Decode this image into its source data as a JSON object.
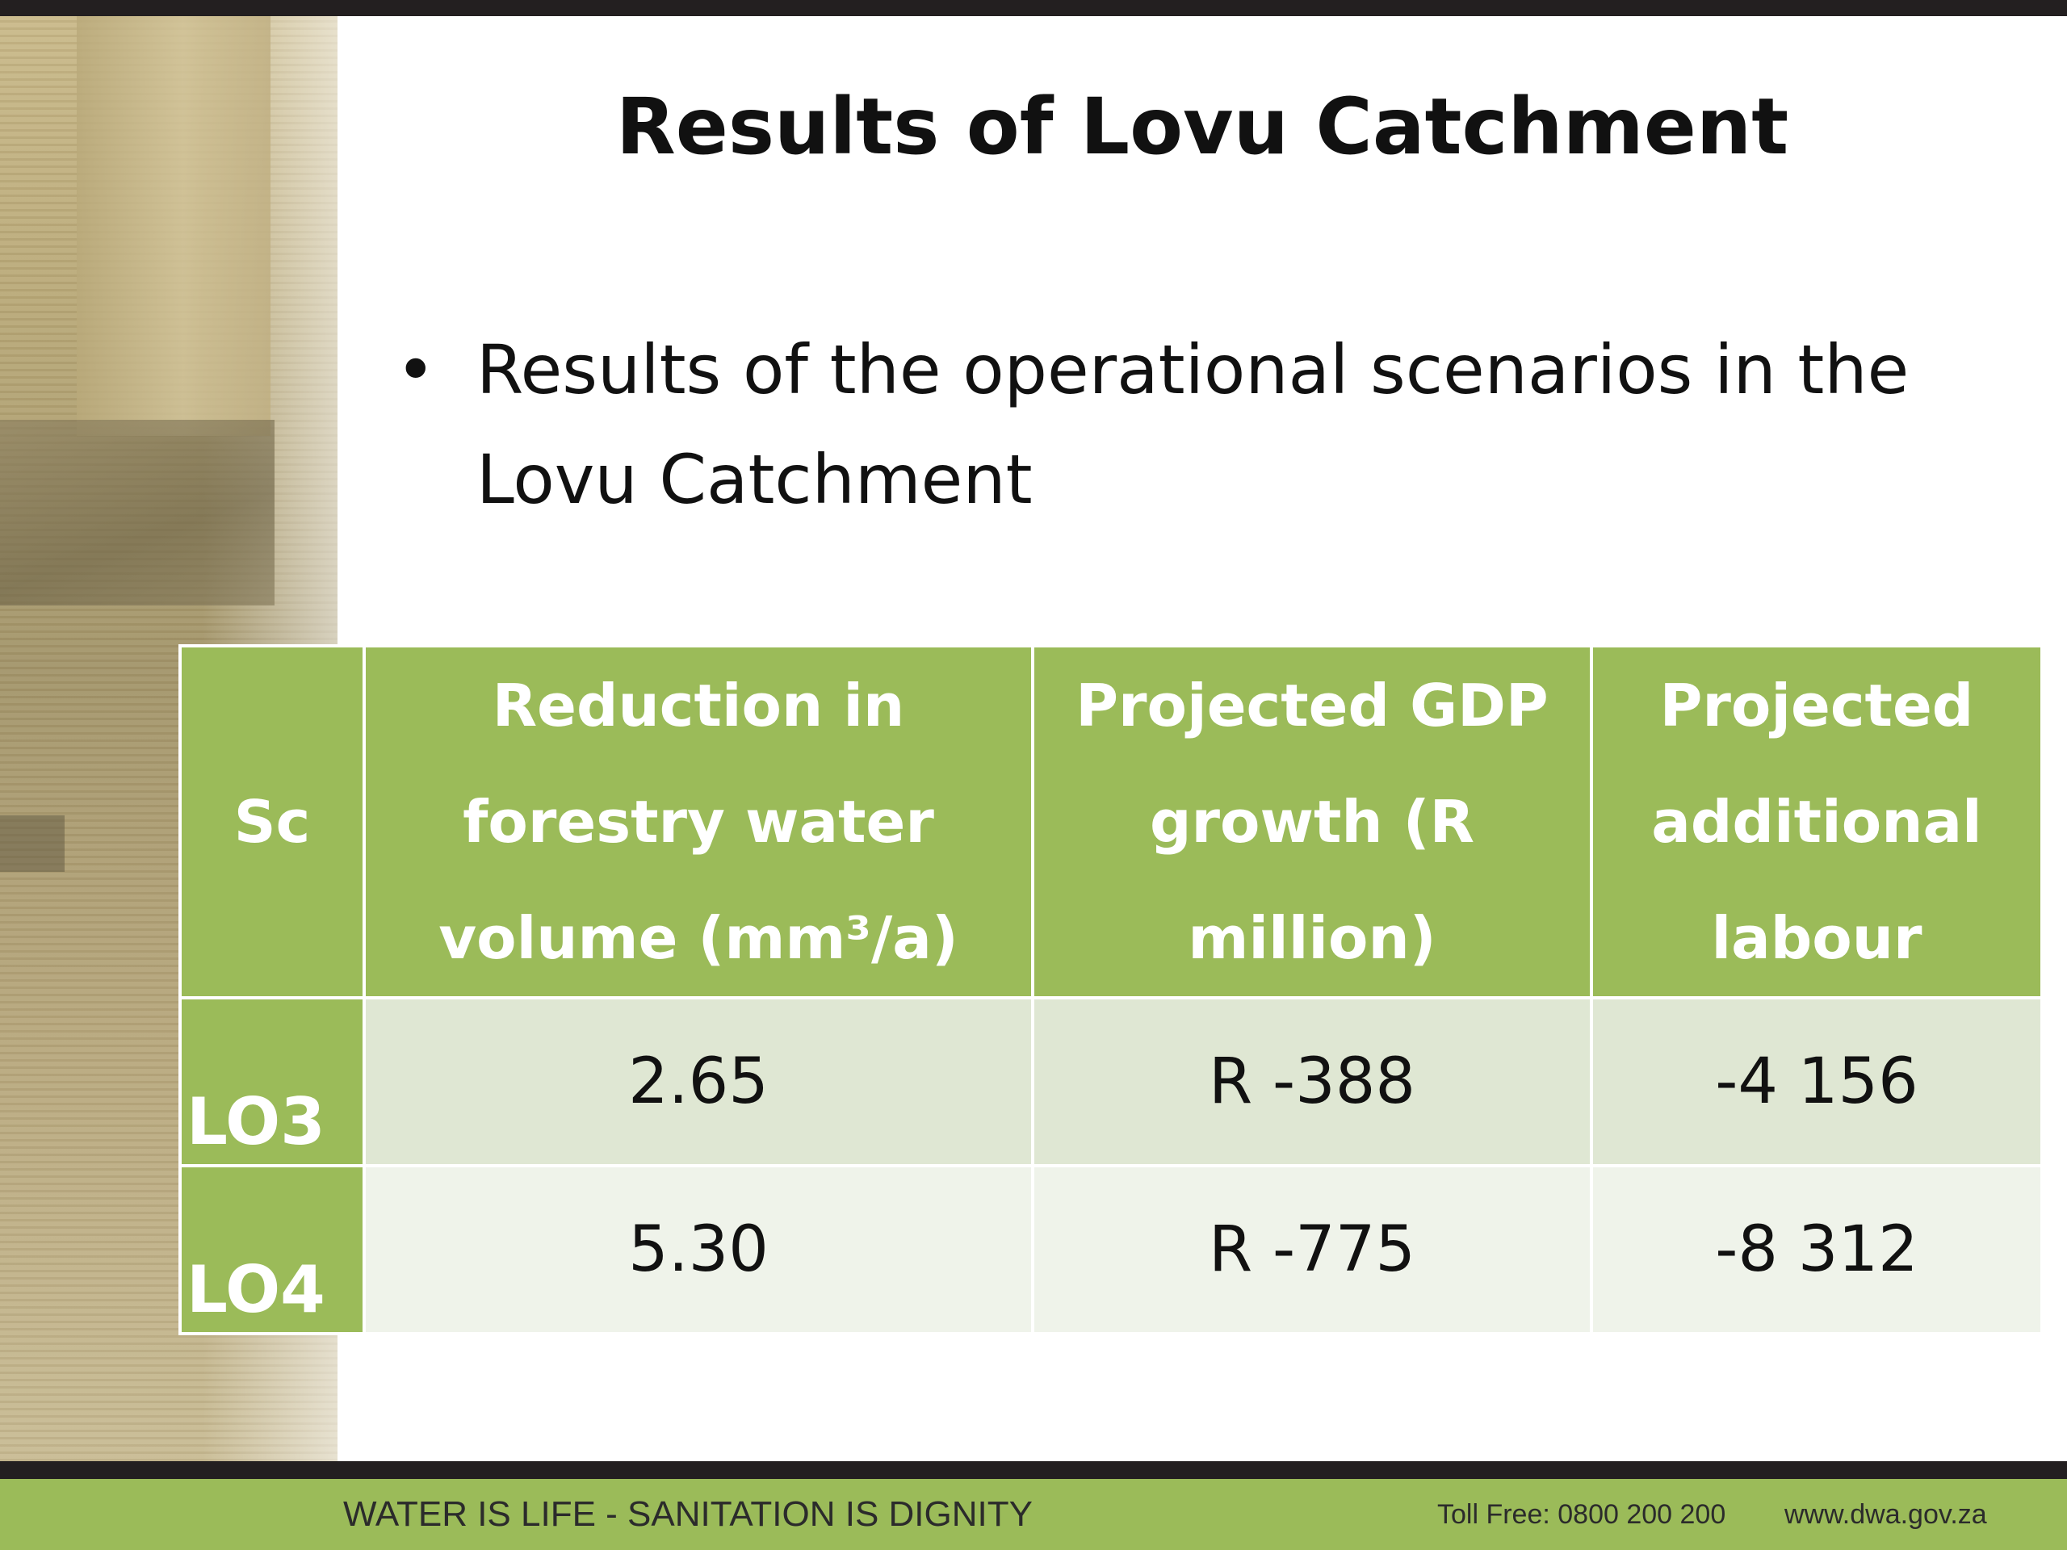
{
  "slide": {
    "title": "Results of Lovu Catchment",
    "bullet": "Results of the operational scenarios in the Lovu Catchment"
  },
  "table": {
    "headers": [
      "Sc",
      "Reduction in forestry water volume (mm³/a)",
      "Projected GDP growth (R million)",
      "Projected additional labour"
    ],
    "rows": [
      [
        "LO3",
        "2.65",
        "R -388",
        "-4 156"
      ],
      [
        "LO4",
        "5.30",
        "R -775",
        "-8 312"
      ]
    ]
  },
  "footer": {
    "slogan": "WATER IS LIFE - SANITATION IS DIGNITY",
    "toll_free": "Toll Free: 0800 200 200",
    "website": "www.dwa.gov.za"
  },
  "colors": {
    "accent_green": "#9bbb59",
    "row_light": "#dfe7d3",
    "row_lighter": "#eff3ea",
    "bar_dark": "#231f20"
  }
}
